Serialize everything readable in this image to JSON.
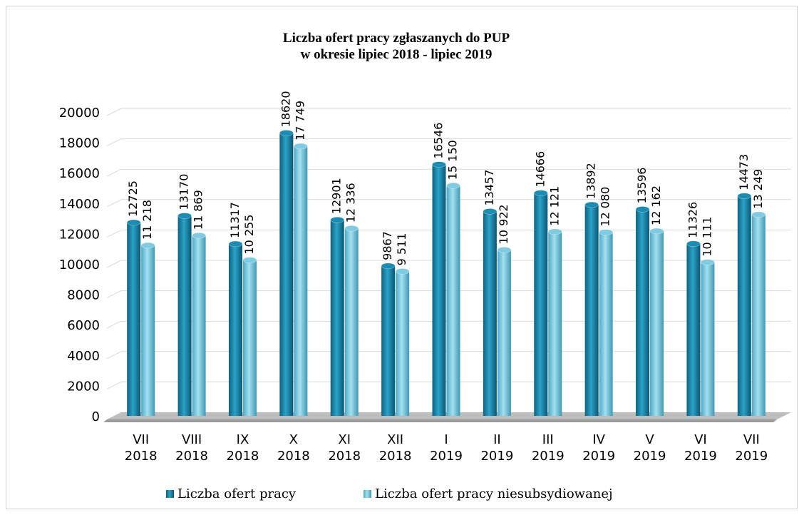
{
  "chart_data": {
    "type": "bar",
    "title": "Liczba ofert pracy zgłaszanych do PUP\nw okresie lipiec 2018 - lipiec 2019",
    "categories": [
      "VII\n2018",
      "VIII\n2018",
      "IX\n2018",
      "X\n2018",
      "XI\n2018",
      "XII\n2018",
      "I\n2019",
      "II\n2019",
      "III\n2019",
      "IV\n2019",
      "V\n2019",
      "VI\n2019",
      "VII\n2019"
    ],
    "series": [
      {
        "name": "Liczba ofert pracy",
        "color": "#1b8db3",
        "values": [
          12725,
          13170,
          11317,
          18620,
          12901,
          9867,
          16546,
          13457,
          14666,
          13892,
          13596,
          11326,
          14473
        ]
      },
      {
        "name": "Liczba ofert pracy niesubsydiowanej",
        "color": "#7fcce2",
        "values": [
          11218,
          11869,
          10255,
          17749,
          12336,
          9511,
          15150,
          10922,
          12121,
          12080,
          12162,
          10111,
          13249
        ],
        "value_labels": [
          "11 218",
          "11 869",
          "10 255",
          "17 749",
          "12 336",
          "9 511",
          "15 150",
          "10 922",
          "12 121",
          "12 080",
          "12 162",
          "10 111",
          "13 249"
        ]
      }
    ],
    "ylim": [
      0,
      20000
    ],
    "yticks": [
      0,
      2000,
      4000,
      6000,
      8000,
      10000,
      12000,
      14000,
      16000,
      18000,
      20000
    ],
    "grid": true,
    "legend": "bottom"
  }
}
